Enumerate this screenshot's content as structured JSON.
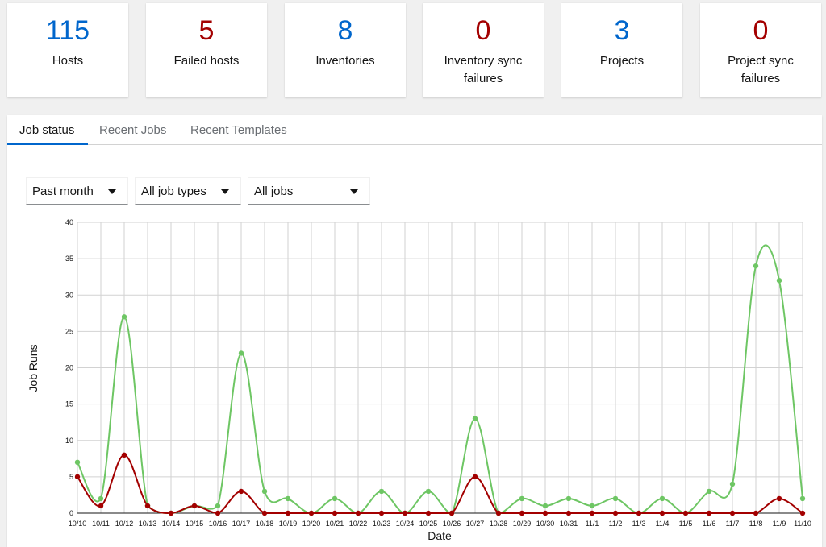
{
  "cards": [
    {
      "value": "115",
      "label": "Hosts",
      "color": "#0066cc"
    },
    {
      "value": "5",
      "label": "Failed hosts",
      "color": "#a30000"
    },
    {
      "value": "8",
      "label": "Inventories",
      "color": "#0066cc"
    },
    {
      "value": "0",
      "label": "Inventory sync failures",
      "color": "#a30000"
    },
    {
      "value": "3",
      "label": "Projects",
      "color": "#0066cc"
    },
    {
      "value": "0",
      "label": "Project sync failures",
      "color": "#a30000"
    }
  ],
  "tabs": [
    {
      "label": "Job status",
      "active": true
    },
    {
      "label": "Recent Jobs",
      "active": false
    },
    {
      "label": "Recent Templates",
      "active": false
    }
  ],
  "filters": {
    "period": "Past month",
    "job_type": "All job types",
    "jobs": "All jobs"
  },
  "colors": {
    "successful": "#6ec664",
    "failed": "#a30000",
    "accent": "#0066cc"
  },
  "chart_data": {
    "type": "line",
    "title": "",
    "xlabel": "Date",
    "ylabel": "Job Runs",
    "ylim": [
      0,
      40
    ],
    "yticks": [
      0,
      5,
      10,
      15,
      20,
      25,
      30,
      35,
      40
    ],
    "grid": true,
    "categories": [
      "10/10",
      "10/11",
      "10/12",
      "10/13",
      "10/14",
      "10/15",
      "10/16",
      "10/17",
      "10/18",
      "10/19",
      "10/20",
      "10/21",
      "10/22",
      "10/23",
      "10/24",
      "10/25",
      "10/26",
      "10/27",
      "10/28",
      "10/29",
      "10/30",
      "10/31",
      "11/1",
      "11/2",
      "11/3",
      "11/4",
      "11/5",
      "11/6",
      "11/7",
      "11/8",
      "11/9",
      "11/10"
    ],
    "series": [
      {
        "color": "#6ec664",
        "values": [
          7,
          2,
          27,
          1,
          0,
          1,
          1,
          22,
          3,
          2,
          0,
          2,
          0,
          3,
          0,
          3,
          0,
          13,
          0,
          2,
          1,
          2,
          1,
          2,
          0,
          2,
          0,
          3,
          4,
          34,
          32,
          2
        ]
      },
      {
        "color": "#a30000",
        "values": [
          5,
          1,
          8,
          1,
          0,
          1,
          0,
          3,
          0,
          0,
          0,
          0,
          0,
          0,
          0,
          0,
          0,
          5,
          0,
          0,
          0,
          0,
          0,
          0,
          0,
          0,
          0,
          0,
          0,
          0,
          2,
          0
        ]
      }
    ]
  }
}
